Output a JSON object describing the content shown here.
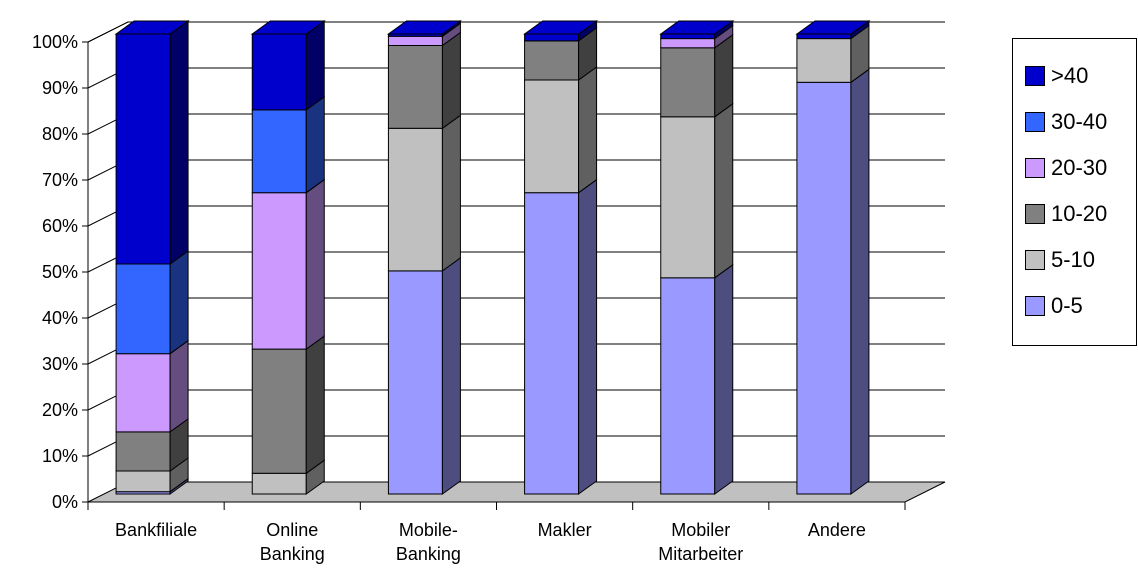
{
  "chart_data": {
    "type": "bar",
    "stacked": true,
    "three_d": true,
    "percent_axis": true,
    "categories": [
      "Bankfiliale",
      "Online Banking",
      "Mobile-Banking",
      "Makler",
      "Mobiler Mitarbeiter",
      "Andere"
    ],
    "category_lines": [
      [
        "Bankfiliale"
      ],
      [
        "Online",
        "Banking"
      ],
      [
        "Mobile-",
        "Banking"
      ],
      [
        "Makler"
      ],
      [
        "Mobiler",
        "Mitarbeiter"
      ],
      [
        "Andere"
      ]
    ],
    "series": [
      {
        "name": "0-5",
        "color": "#9999ff",
        "side": "#4d4d80",
        "values": [
          0.5,
          0,
          48.5,
          65.5,
          47,
          89.5
        ]
      },
      {
        "name": "5-10",
        "color": "#c0c0c0",
        "side": "#606060",
        "values": [
          4.5,
          4.5,
          31,
          24.5,
          35,
          9.5
        ]
      },
      {
        "name": "10-20",
        "color": "#808080",
        "side": "#404040",
        "values": [
          8.5,
          27,
          18,
          8.5,
          15,
          0
        ]
      },
      {
        "name": "20-30",
        "color": "#cc99ff",
        "side": "#664d80",
        "values": [
          17,
          34,
          2,
          0,
          2,
          0
        ]
      },
      {
        "name": "30-40",
        "color": "#3366ff",
        "side": "#1a3380",
        "values": [
          19.5,
          18,
          0,
          0,
          0,
          0
        ]
      },
      {
        "name": ">40",
        "color": "#0000cc",
        "side": "#000066",
        "values": [
          50,
          16.5,
          0.5,
          1.5,
          1,
          1
        ]
      }
    ],
    "ylim": [
      0,
      100
    ],
    "yticks": [
      "0%",
      "10%",
      "20%",
      "30%",
      "40%",
      "50%",
      "60%",
      "70%",
      "80%",
      "90%",
      "100%"
    ],
    "grid": true,
    "legend_position": "right",
    "legend_order": [
      ">40",
      "30-40",
      "20-30",
      "10-20",
      "5-10",
      "0-5"
    ]
  }
}
